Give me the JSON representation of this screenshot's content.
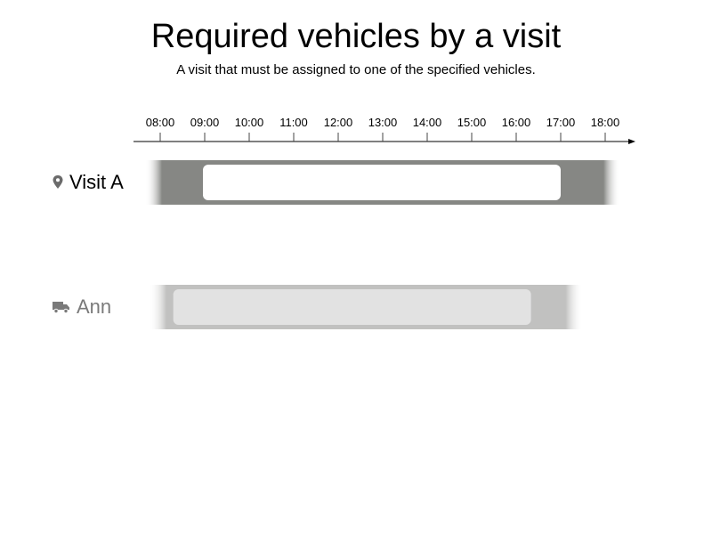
{
  "title": "Required vehicles by a visit",
  "subtitle": "A visit that must be assigned to one of the specified vehicles.",
  "axis": {
    "ticks": [
      "08:00",
      "09:00",
      "10:00",
      "11:00",
      "12:00",
      "13:00",
      "14:00",
      "15:00",
      "16:00",
      "17:00",
      "18:00"
    ]
  },
  "rows": [
    {
      "id": "visit-a",
      "label": "Visit A",
      "icon": "location-pin-icon",
      "outer_window": [
        "07:40",
        "18:20"
      ],
      "inner_window": [
        "09:00",
        "17:00"
      ],
      "colors": {
        "outer": "#868784",
        "inner": "#ffffff",
        "label": "#000000"
      }
    },
    {
      "id": "ann",
      "label": "Ann",
      "icon": "truck-icon",
      "outer_window": [
        "07:45",
        "17:30"
      ],
      "inner_window": [
        "08:20",
        "16:20"
      ],
      "colors": {
        "outer": "#c1c1c0",
        "inner": "#e2e2e2",
        "label": "#7a7a7a"
      }
    }
  ]
}
